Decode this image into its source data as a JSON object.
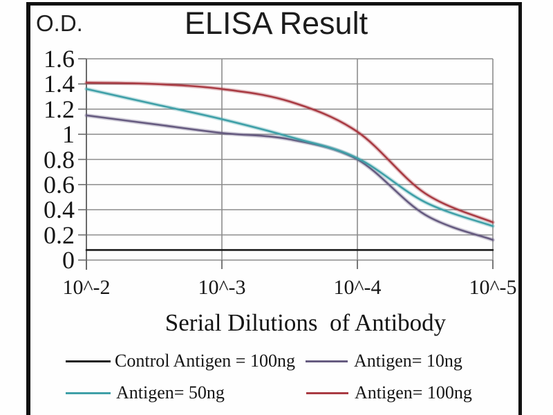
{
  "chart_data": {
    "type": "line",
    "title": "ELISA Result",
    "y_axis_label": "O.D.",
    "x_axis_label": "Serial Dilutions  of Antibody",
    "x_ticks": [
      "10^-2",
      "10^-3",
      "10^-4",
      "10^-5"
    ],
    "x_positions": [
      0,
      0.5,
      1,
      1.5,
      2,
      2.5,
      3
    ],
    "y_ticks": [
      "0",
      "0.2",
      "0.4",
      "0.6",
      "0.8",
      "1",
      "1.2",
      "1.4",
      "1.6"
    ],
    "ylim": [
      0,
      1.6
    ],
    "grid": true,
    "legend_position": "bottom",
    "colors": {
      "grid": "#8c8c8c",
      "axis": "#6a6a6a",
      "frame": "#101010"
    },
    "series": [
      {
        "name": "Control Antigen = 100ng",
        "color": "#1c1c1c",
        "halo": false,
        "values": [
          0.08,
          0.08,
          0.08,
          0.08,
          0.08,
          0.08,
          0.08
        ]
      },
      {
        "name": "Antigen= 10ng",
        "color": "#665b80",
        "halo": true,
        "values": [
          1.15,
          1.08,
          1.01,
          0.96,
          0.8,
          0.36,
          0.16
        ]
      },
      {
        "name": "Antigen= 50ng",
        "color": "#3fa0a8",
        "halo": true,
        "values": [
          1.36,
          1.24,
          1.12,
          0.98,
          0.81,
          0.46,
          0.27
        ]
      },
      {
        "name": "Antigen= 100ng",
        "color": "#a93b43",
        "halo": true,
        "values": [
          1.41,
          1.4,
          1.36,
          1.26,
          1.02,
          0.53,
          0.3
        ]
      }
    ]
  }
}
